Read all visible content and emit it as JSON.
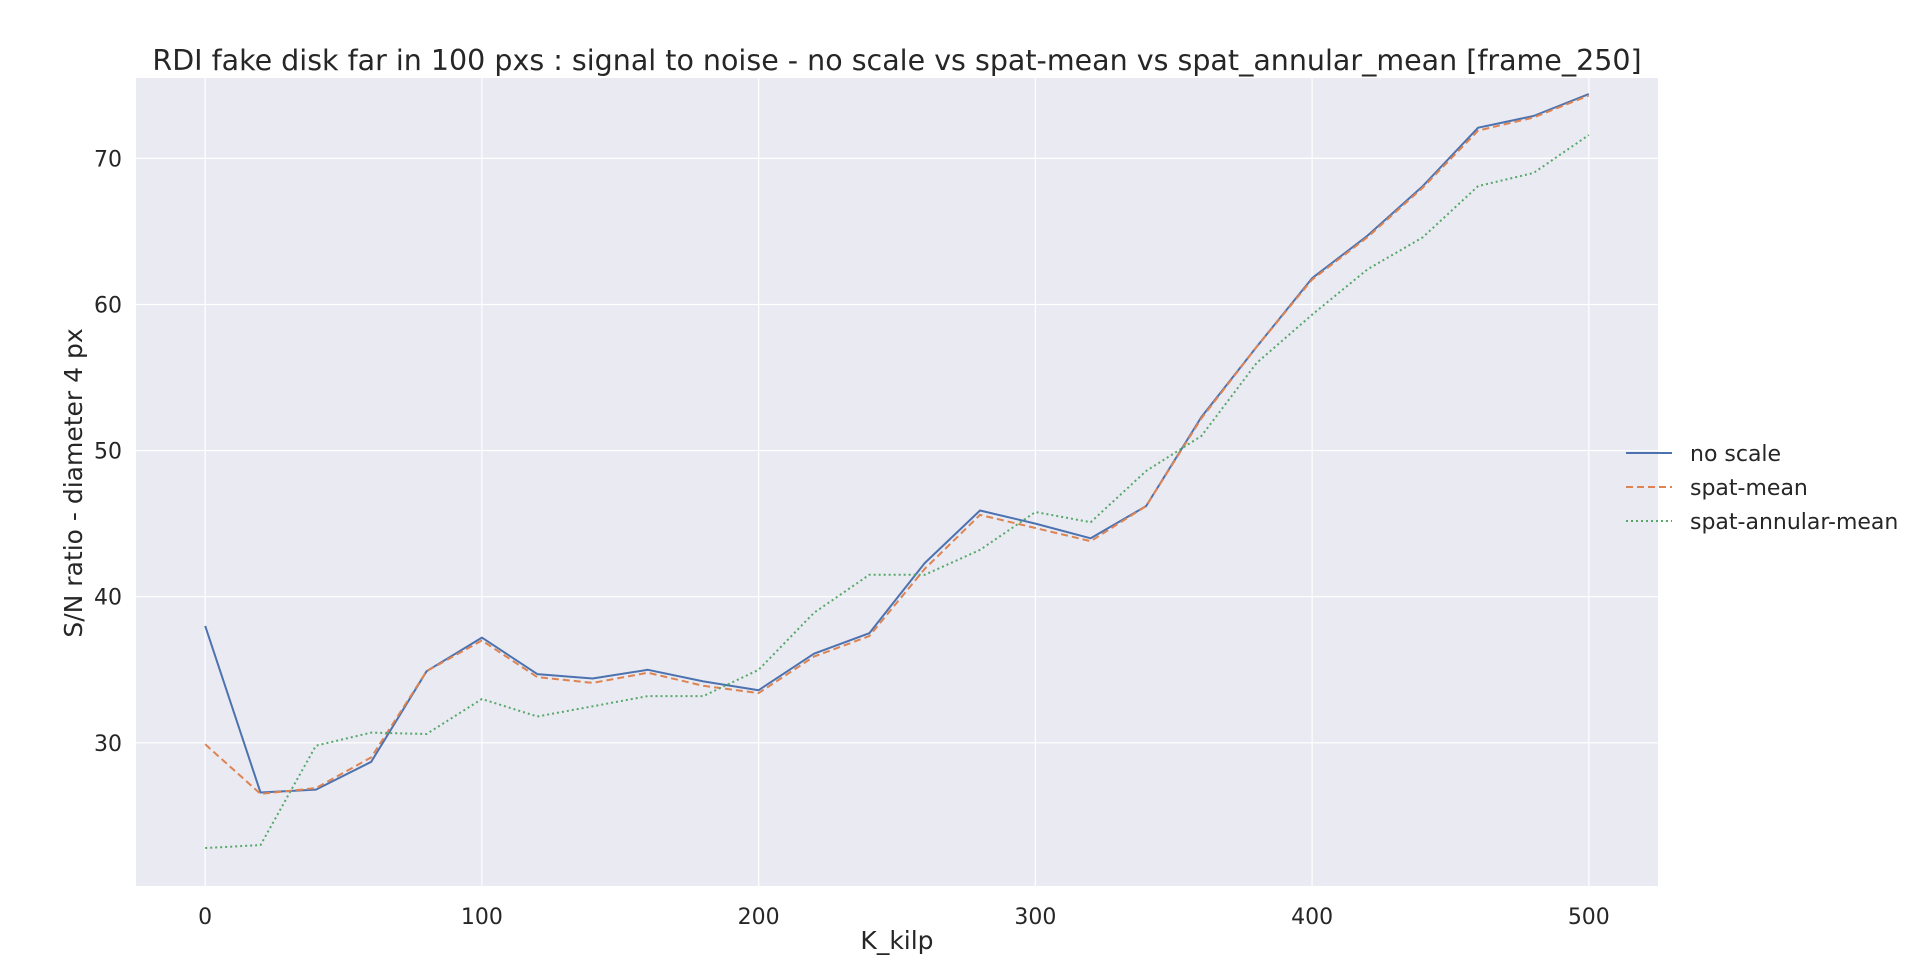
{
  "chart_data": {
    "type": "line",
    "title": "RDI fake disk far in 100 pxs : signal to noise - no scale vs spat-mean vs spat_annular_mean [frame_250]",
    "xlabel": "K_kilp",
    "ylabel": "S/N ratio - diameter 4 px",
    "xlim": [
      -25,
      525
    ],
    "ylim": [
      20.2,
      75.5
    ],
    "xticks": [
      0,
      100,
      200,
      300,
      400,
      500
    ],
    "yticks": [
      30,
      40,
      50,
      60,
      70
    ],
    "grid": true,
    "background": "#eaeaf2",
    "legend_position": "right",
    "x": [
      0,
      20,
      40,
      60,
      80,
      100,
      120,
      140,
      160,
      180,
      200,
      220,
      240,
      260,
      280,
      300,
      320,
      340,
      360,
      380,
      400,
      420,
      440,
      460,
      480,
      500
    ],
    "series": [
      {
        "name": "no scale",
        "color": "#4c72b0",
        "style": "solid",
        "values": [
          38.0,
          26.6,
          26.8,
          28.7,
          34.9,
          37.2,
          34.7,
          34.4,
          35.0,
          34.2,
          33.6,
          36.1,
          37.5,
          42.3,
          45.9,
          45.0,
          44.0,
          46.2,
          52.3,
          57.1,
          61.8,
          64.7,
          68.1,
          72.1,
          72.9,
          74.4
        ]
      },
      {
        "name": "spat-mean",
        "color": "#dd8452",
        "style": "dashed",
        "values": [
          29.9,
          26.5,
          26.9,
          29.0,
          34.9,
          37.0,
          34.5,
          34.1,
          34.8,
          33.9,
          33.4,
          35.9,
          37.3,
          41.9,
          45.6,
          44.7,
          43.8,
          46.2,
          52.2,
          57.1,
          61.7,
          64.6,
          68.0,
          71.9,
          72.8,
          74.3
        ]
      },
      {
        "name": "spat-annular-mean",
        "color": "#55a868",
        "style": "dotted",
        "values": [
          22.8,
          23.0,
          29.8,
          30.7,
          30.6,
          33.0,
          31.8,
          32.5,
          33.2,
          33.2,
          35.0,
          38.9,
          41.5,
          41.5,
          43.2,
          45.8,
          45.1,
          48.6,
          51.0,
          56.0,
          59.3,
          62.4,
          64.6,
          68.1,
          69.0,
          71.6
        ]
      }
    ]
  }
}
